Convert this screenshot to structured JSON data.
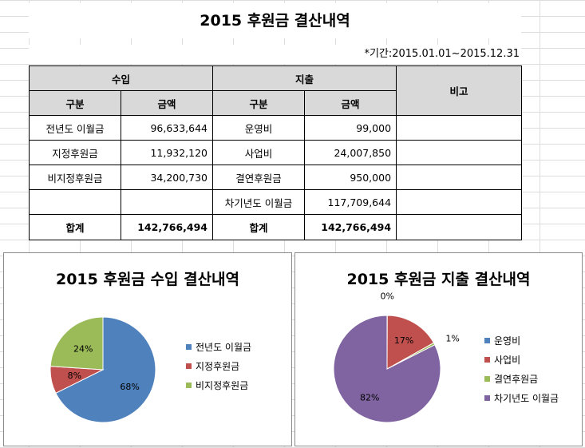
{
  "sheet": {
    "title": "2015 후원금 결산내역",
    "period": "*기간:2015.01.01~2015.12.31"
  },
  "table": {
    "income_header": "수입",
    "expense_header": "지출",
    "remarks_header": "비고",
    "col_category": "구분",
    "col_amount": "금액",
    "rows": [
      {
        "inc_cat": "전년도 이월금",
        "inc_amt": "96,633,644",
        "exp_cat": "운영비",
        "exp_amt": "99,000"
      },
      {
        "inc_cat": "지정후원금",
        "inc_amt": "11,932,120",
        "exp_cat": "사업비",
        "exp_amt": "24,007,850"
      },
      {
        "inc_cat": "비지정후원금",
        "inc_amt": "34,200,730",
        "exp_cat": "결연후원금",
        "exp_amt": "950,000"
      },
      {
        "inc_cat": "",
        "inc_amt": "",
        "exp_cat": "차기년도 이월금",
        "exp_amt": "117,709,644"
      }
    ],
    "total_label": "합계",
    "total_income": "142,766,494",
    "total_expense": "142,766,494"
  },
  "chart_data": [
    {
      "type": "pie",
      "title": "2015 후원금 수입 결산내역",
      "categories": [
        "전년도 이월금",
        "지정후원금",
        "비지정후원금"
      ],
      "values": [
        96633644,
        11932120,
        34200730
      ],
      "labels": [
        "68%",
        "8%",
        "24%"
      ],
      "colors": [
        "#4f81bd",
        "#c0504d",
        "#9bbb59"
      ],
      "legend": "right"
    },
    {
      "type": "pie",
      "title": "2015 후원금 지출 결산내역",
      "categories": [
        "운영비",
        "사업비",
        "결연후원금",
        "차기년도 이월금"
      ],
      "values": [
        99000,
        24007850,
        950000,
        117709644
      ],
      "labels": [
        "0%",
        "17%",
        "1%",
        "82%"
      ],
      "colors": [
        "#4f81bd",
        "#c0504d",
        "#9bbb59",
        "#8064a2"
      ],
      "legend": "right"
    }
  ]
}
